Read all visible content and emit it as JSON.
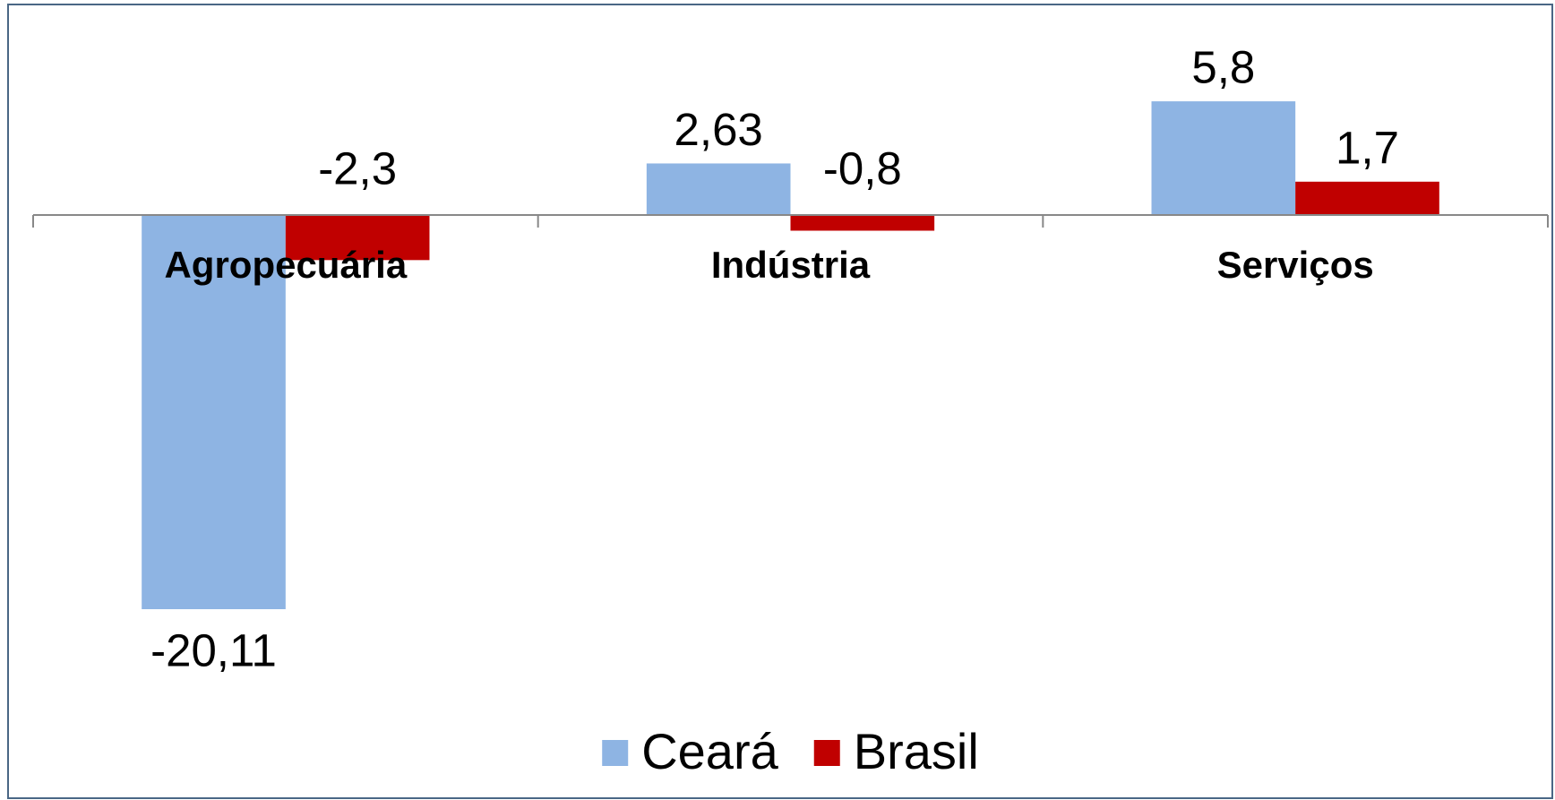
{
  "chart_data": {
    "type": "bar",
    "categories": [
      "Agropecuária",
      "Indústria",
      "Serviços"
    ],
    "series": [
      {
        "name": "Ceará",
        "color": "#8eb4e3",
        "values": [
          -20.11,
          2.63,
          5.8
        ],
        "value_labels": [
          "-20,11",
          "2,63",
          "5,8"
        ]
      },
      {
        "name": "Brasil",
        "color": "#c00000",
        "values": [
          -2.3,
          -0.8,
          1.7
        ],
        "value_labels": [
          "-2,3",
          "-0,8",
          "1,7"
        ]
      }
    ],
    "legend": "bottom"
  }
}
